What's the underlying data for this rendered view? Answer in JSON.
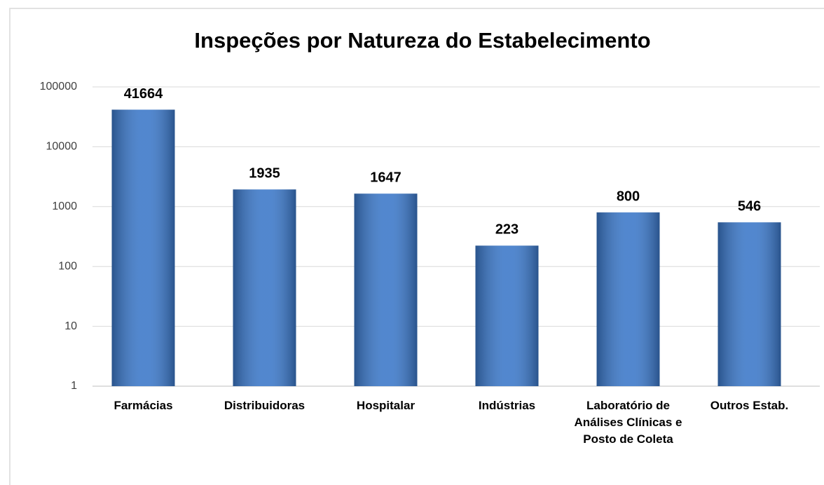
{
  "chart_data": {
    "type": "bar",
    "title": "Inspeções por Natureza do Estabelecimento",
    "categories": [
      "Farmácias",
      "Distribuidoras",
      "Hospitalar",
      "Indústrias",
      "Laboratório de Análises Clínicas e Posto de Coleta",
      "Outros Estab."
    ],
    "values": [
      41664,
      1935,
      1647,
      223,
      800,
      546
    ],
    "color": "#3a77c8",
    "log_scale": true,
    "ylim": [
      1,
      100000
    ],
    "yticks": [
      1,
      10,
      100,
      1000,
      10000,
      100000
    ],
    "grid": true
  }
}
